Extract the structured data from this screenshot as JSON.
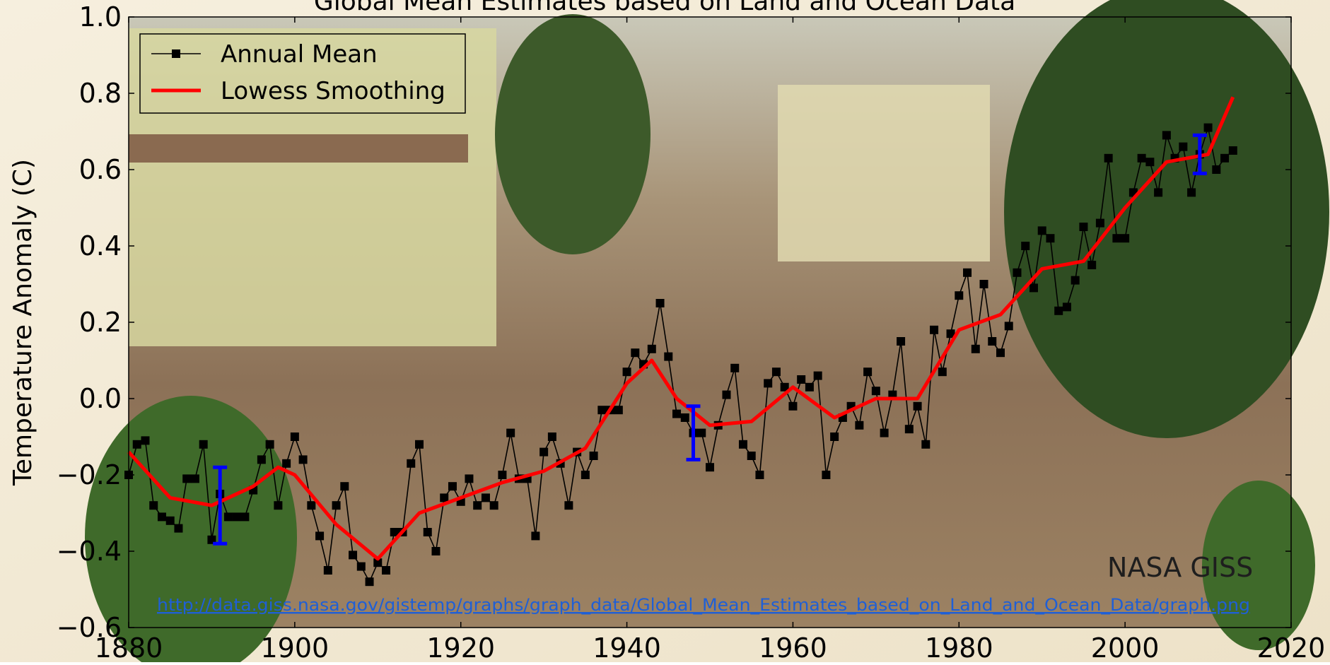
{
  "chart_data": {
    "type": "line",
    "title": "Global Mean Estimates based on Land and Ocean Data",
    "y_label": "Temperature Anomaly (C)",
    "annotations": [
      "NASA GISS",
      "http://data.giss.nasa.gov/gistemp/graphs/graph_data/Global_Mean_Estimates_based_on_Land_and_Ocean_Data/graph.png"
    ],
    "legend": "upper left",
    "xlim": [
      1880,
      2020
    ],
    "xticks": [
      1880,
      1900,
      1920,
      1940,
      1960,
      1980,
      2000,
      2020
    ],
    "ylim": [
      -0.6,
      1.0
    ],
    "yticks": [
      {
        "value": -0.6,
        "label": "−0.6"
      },
      {
        "value": -0.4,
        "label": "−0.4"
      },
      {
        "value": -0.2,
        "label": "−0.2"
      },
      {
        "value": 0,
        "label": "0.0"
      },
      {
        "value": 0.2,
        "label": "0.2"
      },
      {
        "value": 0.4,
        "label": "0.4"
      },
      {
        "value": 0.6,
        "label": "0.6"
      },
      {
        "value": 0.8,
        "label": "0.8"
      },
      {
        "value": 1.0,
        "label": "1.0"
      }
    ],
    "series": [
      {
        "name": "Annual Mean",
        "color": "#000000",
        "marker": "square",
        "x": [
          1880,
          1881,
          1882,
          1883,
          1884,
          1885,
          1886,
          1887,
          1888,
          1889,
          1890,
          1891,
          1892,
          1893,
          1894,
          1895,
          1896,
          1897,
          1898,
          1899,
          1900,
          1901,
          1902,
          1903,
          1904,
          1905,
          1906,
          1907,
          1908,
          1909,
          1910,
          1911,
          1912,
          1913,
          1914,
          1915,
          1916,
          1917,
          1918,
          1919,
          1920,
          1921,
          1922,
          1923,
          1924,
          1925,
          1926,
          1927,
          1928,
          1929,
          1930,
          1931,
          1932,
          1933,
          1934,
          1935,
          1936,
          1937,
          1938,
          1939,
          1940,
          1941,
          1942,
          1943,
          1944,
          1945,
          1946,
          1947,
          1948,
          1949,
          1950,
          1951,
          1952,
          1953,
          1954,
          1955,
          1956,
          1957,
          1958,
          1959,
          1960,
          1961,
          1962,
          1963,
          1964,
          1965,
          1966,
          1967,
          1968,
          1969,
          1970,
          1971,
          1972,
          1973,
          1974,
          1975,
          1976,
          1977,
          1978,
          1979,
          1980,
          1981,
          1982,
          1983,
          1984,
          1985,
          1986,
          1987,
          1988,
          1989,
          1990,
          1991,
          1992,
          1993,
          1994,
          1995,
          1996,
          1997,
          1998,
          1999,
          2000,
          2001,
          2002,
          2003,
          2004,
          2005,
          2006,
          2007,
          2008,
          2009,
          2010,
          2011,
          2012,
          2013
        ],
        "values": [
          -0.2,
          -0.12,
          -0.11,
          -0.28,
          -0.31,
          -0.32,
          -0.34,
          -0.21,
          -0.21,
          -0.12,
          -0.37,
          -0.25,
          -0.31,
          -0.31,
          -0.31,
          -0.24,
          -0.16,
          -0.12,
          -0.28,
          -0.17,
          -0.1,
          -0.16,
          -0.28,
          -0.36,
          -0.45,
          -0.28,
          -0.23,
          -0.41,
          -0.44,
          -0.48,
          -0.43,
          -0.45,
          -0.35,
          -0.35,
          -0.17,
          -0.12,
          -0.35,
          -0.4,
          -0.26,
          -0.23,
          -0.27,
          -0.21,
          -0.28,
          -0.26,
          -0.28,
          -0.2,
          -0.09,
          -0.21,
          -0.21,
          -0.36,
          -0.14,
          -0.1,
          -0.17,
          -0.28,
          -0.14,
          -0.2,
          -0.15,
          -0.03,
          -0.03,
          -0.03,
          0.07,
          0.12,
          0.09,
          0.13,
          0.25,
          0.11,
          -0.04,
          -0.05,
          -0.09,
          -0.09,
          -0.18,
          -0.07,
          0.01,
          0.08,
          -0.12,
          -0.15,
          -0.2,
          0.04,
          0.07,
          0.03,
          -0.02,
          0.05,
          0.03,
          0.06,
          -0.2,
          -0.1,
          -0.05,
          -0.02,
          -0.07,
          0.07,
          0.02,
          -0.09,
          0.01,
          0.15,
          -0.08,
          -0.02,
          -0.12,
          0.18,
          0.07,
          0.17,
          0.27,
          0.33,
          0.13,
          0.3,
          0.15,
          0.12,
          0.19,
          0.33,
          0.4,
          0.29,
          0.44,
          0.42,
          0.23,
          0.24,
          0.31,
          0.45,
          0.35,
          0.46,
          0.63,
          0.42,
          0.42,
          0.54,
          0.63,
          0.62,
          0.54,
          0.69,
          0.63,
          0.66,
          0.54,
          0.64,
          0.71,
          0.6,
          0.63,
          0.65
        ]
      },
      {
        "name": "Lowess Smoothing",
        "color": "#ff0000",
        "x": [
          1880,
          1885,
          1890,
          1895,
          1898,
          1900,
          1905,
          1910,
          1915,
          1920,
          1925,
          1930,
          1935,
          1940,
          1943,
          1946,
          1950,
          1955,
          1960,
          1965,
          1970,
          1975,
          1980,
          1985,
          1990,
          1995,
          2000,
          2005,
          2010,
          2013
        ],
        "values": [
          -0.14,
          -0.26,
          -0.28,
          -0.23,
          -0.18,
          -0.2,
          -0.33,
          -0.42,
          -0.3,
          -0.26,
          -0.22,
          -0.19,
          -0.13,
          0.04,
          0.1,
          0.0,
          -0.07,
          -0.06,
          0.03,
          -0.05,
          0.0,
          0.0,
          0.18,
          0.22,
          0.34,
          0.36,
          0.5,
          0.62,
          0.64,
          0.79
        ]
      }
    ],
    "error_bars": [
      {
        "x": 1891,
        "value": -0.28,
        "error": 0.1,
        "color": "#0000ff"
      },
      {
        "x": 1948,
        "value": -0.09,
        "error": 0.07,
        "color": "#0000ff"
      },
      {
        "x": 2009,
        "value": 0.64,
        "error": 0.05,
        "color": "#0000ff"
      }
    ]
  }
}
